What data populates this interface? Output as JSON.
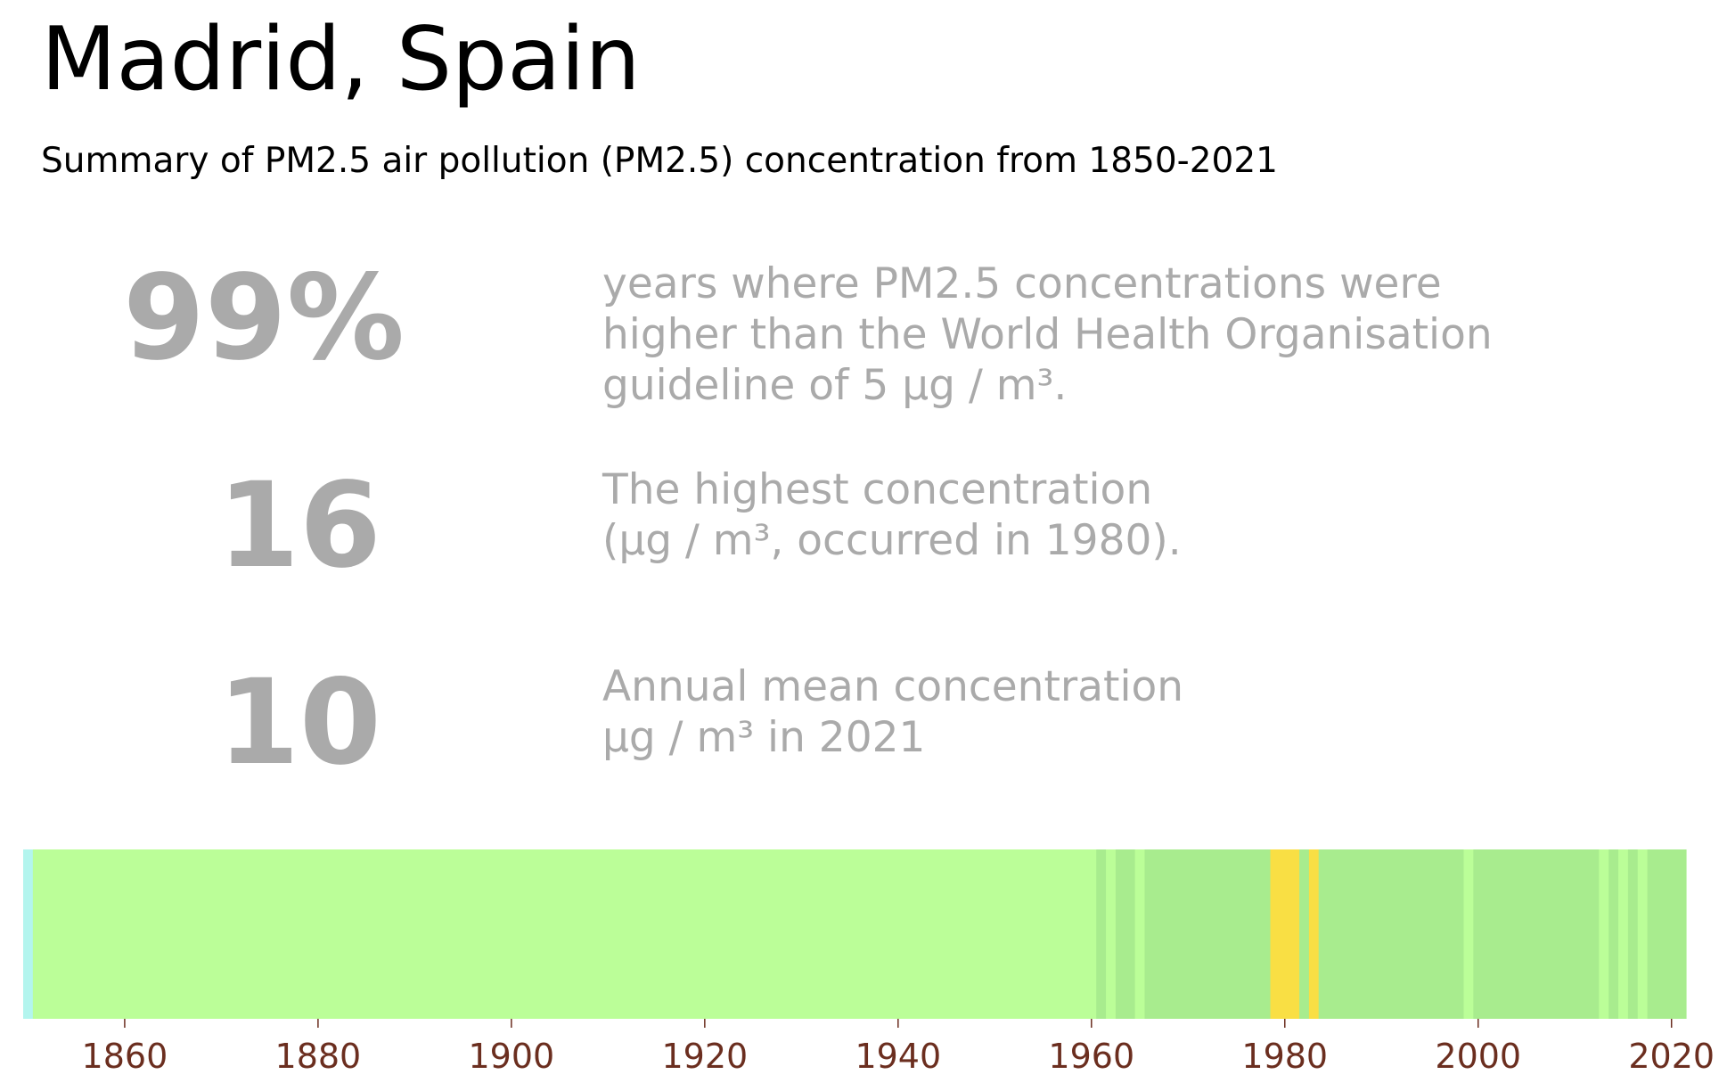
{
  "header": {
    "title": "Madrid, Spain",
    "subtitle": "Summary of PM2.5 air pollution (PM2.5) concentration from 1850-2021"
  },
  "stats": [
    {
      "value": "99%",
      "lines": [
        "years where PM2.5 concentrations were",
        "higher than the World Health Organisation",
        "guideline of 5 µg / m³."
      ]
    },
    {
      "value": "16",
      "lines": [
        "The highest concentration",
        "(µg / m³, occurred in 1980)."
      ]
    },
    {
      "value": "10",
      "lines": [
        "Annual mean concentration",
        "µg / m³ in 2021"
      ]
    }
  ],
  "chart_data": {
    "type": "heatmap",
    "x_range": [
      1850,
      2022
    ],
    "xticks": [
      1860,
      1880,
      1900,
      1920,
      1940,
      1960,
      1980,
      2000,
      2020
    ],
    "tick_label_color": "#6b2e1f",
    "colors": {
      "lowest": "#b3f5ee",
      "low": "#bbfe98",
      "medium": "#a8ec8e",
      "high": "#f9df44"
    },
    "bands": [
      {
        "start": 1850,
        "end": 1850,
        "level": "lowest"
      },
      {
        "start": 1851,
        "end": 1960,
        "level": "low"
      },
      {
        "start": 1961,
        "end": 1961,
        "level": "medium"
      },
      {
        "start": 1962,
        "end": 1962,
        "level": "low"
      },
      {
        "start": 1963,
        "end": 1964,
        "level": "medium"
      },
      {
        "start": 1965,
        "end": 1965,
        "level": "low"
      },
      {
        "start": 1966,
        "end": 1978,
        "level": "medium"
      },
      {
        "start": 1979,
        "end": 1981,
        "level": "high"
      },
      {
        "start": 1982,
        "end": 1982,
        "level": "medium"
      },
      {
        "start": 1983,
        "end": 1983,
        "level": "high"
      },
      {
        "start": 1984,
        "end": 1998,
        "level": "medium"
      },
      {
        "start": 1999,
        "end": 1999,
        "level": "low"
      },
      {
        "start": 2000,
        "end": 2012,
        "level": "medium"
      },
      {
        "start": 2013,
        "end": 2013,
        "level": "low"
      },
      {
        "start": 2014,
        "end": 2014,
        "level": "medium"
      },
      {
        "start": 2015,
        "end": 2015,
        "level": "low"
      },
      {
        "start": 2016,
        "end": 2016,
        "level": "medium"
      },
      {
        "start": 2017,
        "end": 2017,
        "level": "low"
      },
      {
        "start": 2018,
        "end": 2018,
        "level": "medium"
      },
      {
        "start": 2019,
        "end": 2021,
        "level": "medium"
      }
    ]
  }
}
